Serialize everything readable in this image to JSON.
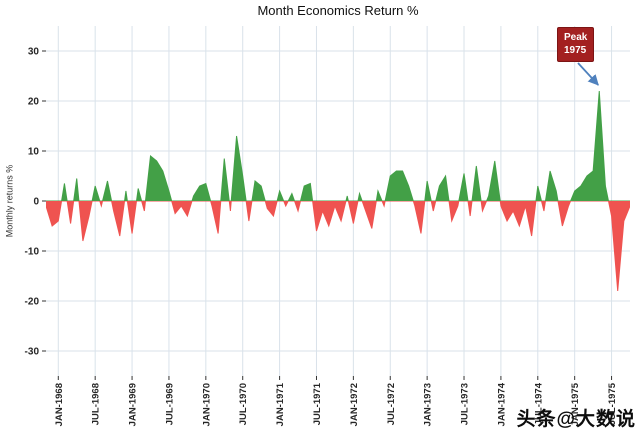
{
  "watermark": "头条@大数说",
  "colors": {
    "positive": "#43a047",
    "negative": "#ef5350",
    "grid": "#d9e2ea",
    "tick_text": "#262626",
    "tick_mark": "#333333",
    "annotation_bg": "#a32020",
    "arrow": "#4f81bd"
  },
  "chart_data": {
    "type": "area",
    "title": "Month Economics Return %",
    "xlabel": "",
    "ylabel": "Monthly returns %",
    "grid": true,
    "ylim": [
      -35,
      35
    ],
    "y_ticks": [
      -30,
      -20,
      -10,
      0,
      10,
      20,
      30
    ],
    "x_ticks": [
      "JAN-1968",
      "JUL-1968",
      "JAN-1969",
      "JUL-1969",
      "JAN-1970",
      "JUL-1970",
      "JAN-1971",
      "JUL-1971",
      "JAN-1972",
      "JUL-1972",
      "JAN-1973",
      "JUL-1973",
      "JAN-1974",
      "JUL-1974",
      "JAN-1975",
      "JUL-1975"
    ],
    "x": [
      "NOV-1967",
      "DEC-1967",
      "JAN-1968",
      "FEB-1968",
      "MAR-1968",
      "APR-1968",
      "MAY-1968",
      "JUN-1968",
      "JUL-1968",
      "AUG-1968",
      "SEP-1968",
      "OCT-1968",
      "NOV-1968",
      "DEC-1968",
      "JAN-1969",
      "FEB-1969",
      "MAR-1969",
      "APR-1969",
      "MAY-1969",
      "JUN-1969",
      "JUL-1969",
      "AUG-1969",
      "SEP-1969",
      "OCT-1969",
      "NOV-1969",
      "DEC-1969",
      "JAN-1970",
      "FEB-1970",
      "MAR-1970",
      "APR-1970",
      "MAY-1970",
      "JUN-1970",
      "JUL-1970",
      "AUG-1970",
      "SEP-1970",
      "OCT-1970",
      "NOV-1970",
      "DEC-1970",
      "JAN-1971",
      "FEB-1971",
      "MAR-1971",
      "APR-1971",
      "MAY-1971",
      "JUN-1971",
      "JUL-1971",
      "AUG-1971",
      "SEP-1971",
      "OCT-1971",
      "NOV-1971",
      "DEC-1971",
      "JAN-1972",
      "FEB-1972",
      "MAR-1972",
      "APR-1972",
      "MAY-1972",
      "JUN-1972",
      "JUL-1972",
      "AUG-1972",
      "SEP-1972",
      "OCT-1972",
      "NOV-1972",
      "DEC-1972",
      "JAN-1973",
      "FEB-1973",
      "MAR-1973",
      "APR-1973",
      "MAY-1973",
      "JUN-1973",
      "JUL-1973",
      "AUG-1973",
      "SEP-1973",
      "OCT-1973",
      "NOV-1973",
      "DEC-1973",
      "JAN-1974",
      "FEB-1974",
      "MAR-1974",
      "APR-1974",
      "MAY-1974",
      "JUN-1974",
      "JUL-1974",
      "AUG-1974",
      "SEP-1974",
      "OCT-1974",
      "NOV-1974",
      "DEC-1974",
      "JAN-1975",
      "FEB-1975",
      "MAR-1975",
      "APR-1975",
      "MAY-1975",
      "JUN-1975",
      "JUL-1975",
      "AUG-1975",
      "SEP-1975",
      "OCT-1975"
    ],
    "values": [
      -1,
      -5,
      -4,
      3.5,
      -4.5,
      4.5,
      -8,
      -3,
      3,
      -1,
      4,
      -2,
      -7,
      2,
      -6.5,
      2.5,
      -2,
      9,
      8,
      6,
      2,
      -2.5,
      -1,
      -3,
      1,
      3,
      3.5,
      -1,
      -6.5,
      8.5,
      -2,
      13,
      5,
      -4,
      4,
      3,
      -1.5,
      -3,
      2,
      -1,
      1.5,
      -2,
      3,
      3.5,
      -6,
      -2,
      -5,
      -1,
      -4,
      1,
      -4.5,
      1.5,
      -2,
      -5.5,
      2,
      -1,
      5,
      6,
      6,
      3,
      -1,
      -6.5,
      4,
      -2,
      3,
      5,
      -4,
      -1,
      5.5,
      -3,
      7,
      -2,
      1,
      8,
      -1,
      -4,
      -2,
      -5,
      -1,
      -7,
      3,
      -2,
      6,
      2,
      -5,
      -1,
      2,
      3,
      5,
      6,
      22,
      3,
      -3,
      -18,
      -4,
      -1
    ],
    "annotation": {
      "line1": "Peak",
      "line2": "1975",
      "target_x": "MAY-1975",
      "target_y": 22
    },
    "legend": false
  }
}
